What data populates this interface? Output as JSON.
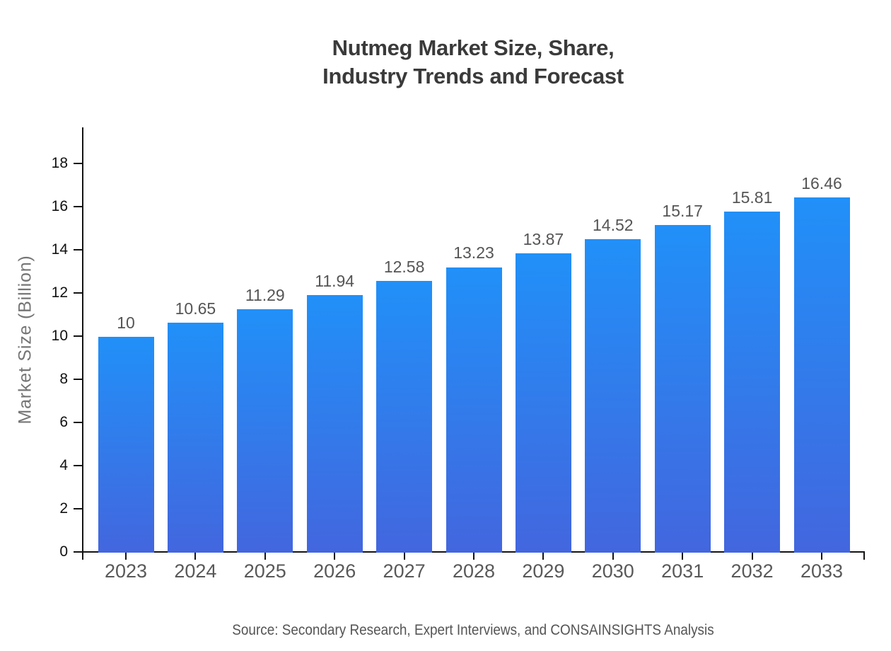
{
  "title": {
    "line1": "Nutmeg Market Size, Share,",
    "line2": "Industry Trends and Forecast"
  },
  "source": "Source: Secondary Research, Expert Interviews, and CONSAINSIGHTS Analysis",
  "chart_data": {
    "type": "bar",
    "title": "Nutmeg Market Size, Share, Industry Trends and Forecast",
    "categories": [
      "2023",
      "2024",
      "2025",
      "2026",
      "2027",
      "2028",
      "2029",
      "2030",
      "2031",
      "2032",
      "2033"
    ],
    "values": [
      10,
      10.65,
      11.29,
      11.94,
      12.58,
      13.23,
      13.87,
      14.52,
      15.17,
      15.81,
      16.46
    ],
    "value_labels": [
      "10",
      "10.65",
      "11.29",
      "11.94",
      "12.58",
      "13.23",
      "13.87",
      "14.52",
      "15.17",
      "15.81",
      "16.46"
    ],
    "xlabel": "",
    "ylabel": "Market Size (Billion)",
    "ylim": [
      0,
      19.7
    ],
    "yticks": [
      0,
      2,
      4,
      6,
      8,
      10,
      12,
      14,
      16,
      18
    ],
    "grid": false,
    "legend": false,
    "bar_gradient": {
      "top": "#2190f8",
      "bottom": "#4366de"
    },
    "axis_color": "#141414",
    "tick_label_color": "#111111",
    "category_label_color": "#595959",
    "value_label_color": "#555555"
  }
}
